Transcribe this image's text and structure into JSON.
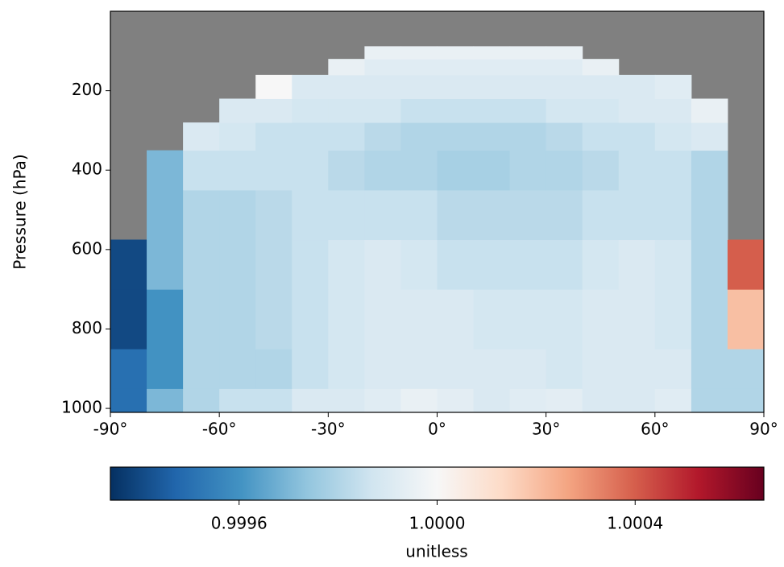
{
  "chart_data": {
    "type": "heatmap",
    "ylabel": "Pressure (hPa)",
    "colorbar_label": "unitless",
    "x_edges": [
      -90,
      -80,
      -70,
      -60,
      -50,
      -40,
      -30,
      -20,
      -10,
      0,
      10,
      20,
      30,
      40,
      50,
      60,
      70,
      80,
      90
    ],
    "y_edges": [
      1010,
      950,
      850,
      700,
      575,
      450,
      350,
      280,
      220,
      160,
      120,
      88
    ],
    "values": [
      [
        0.9995,
        0.9997,
        0.9998,
        0.99985,
        0.99985,
        0.9999,
        0.9999,
        0.99992,
        0.99995,
        0.99993,
        0.9999,
        0.99992,
        0.99993,
        0.9999,
        0.9999,
        0.99992,
        0.9998,
        0.9998
      ],
      [
        0.9995,
        0.9996,
        0.9998,
        0.9998,
        0.9998,
        0.99985,
        0.99988,
        0.9999,
        0.9999,
        0.9999,
        0.9999,
        0.9999,
        0.99988,
        0.9999,
        0.9999,
        0.9999,
        0.9998,
        0.9998
      ],
      [
        0.9994,
        0.9996,
        0.9998,
        0.9998,
        0.99982,
        0.99985,
        0.99988,
        0.9999,
        0.9999,
        0.9999,
        0.99988,
        0.99988,
        0.99988,
        0.9999,
        0.9999,
        0.99988,
        0.9998,
        1.0002
      ],
      [
        0.9994,
        0.9997,
        0.9998,
        0.9998,
        0.99982,
        0.99985,
        0.99988,
        0.9999,
        0.99988,
        0.99985,
        0.99985,
        0.99985,
        0.99985,
        0.99988,
        0.9999,
        0.99988,
        0.9998,
        1.0004
      ],
      [
        null,
        0.9997,
        0.9998,
        0.9998,
        0.99982,
        0.99985,
        0.99985,
        0.99985,
        0.99985,
        0.99982,
        0.99982,
        0.99982,
        0.99982,
        0.99985,
        0.99985,
        0.99985,
        0.9998,
        null
      ],
      [
        null,
        0.9997,
        0.99985,
        0.99985,
        0.99985,
        0.99985,
        0.99982,
        0.9998,
        0.9998,
        0.99978,
        0.99978,
        0.9998,
        0.9998,
        0.99982,
        0.99985,
        0.99985,
        0.9998,
        null
      ],
      [
        null,
        null,
        0.9999,
        0.99988,
        0.99985,
        0.99985,
        0.99985,
        0.99982,
        0.9998,
        0.9998,
        0.9998,
        0.9998,
        0.99982,
        0.99985,
        0.99985,
        0.99988,
        0.9999,
        null
      ],
      [
        null,
        null,
        null,
        0.9999,
        0.9999,
        0.99988,
        0.99988,
        0.99988,
        0.99985,
        0.99985,
        0.99985,
        0.99985,
        0.99988,
        0.99988,
        0.9999,
        0.9999,
        0.99995,
        null
      ],
      [
        null,
        null,
        null,
        null,
        1.0,
        0.9999,
        0.9999,
        0.9999,
        0.9999,
        0.9999,
        0.9999,
        0.9999,
        0.9999,
        0.9999,
        0.9999,
        0.99992,
        null,
        null
      ],
      [
        null,
        null,
        null,
        null,
        null,
        null,
        0.99995,
        0.99992,
        0.99992,
        0.99992,
        0.99992,
        0.99992,
        0.99992,
        0.99995,
        null,
        null,
        null,
        null
      ],
      [
        null,
        null,
        null,
        null,
        null,
        null,
        null,
        0.99995,
        0.99995,
        0.99995,
        0.99995,
        0.99995,
        0.99995,
        null,
        null,
        null,
        null,
        null
      ]
    ],
    "xlim": [
      -90,
      90
    ],
    "ylim": [
      1010,
      0
    ],
    "xticks": [
      {
        "value": -90,
        "label": "-90°"
      },
      {
        "value": -60,
        "label": "-60°"
      },
      {
        "value": -30,
        "label": "-30°"
      },
      {
        "value": 0,
        "label": "0°"
      },
      {
        "value": 30,
        "label": "30°"
      },
      {
        "value": 60,
        "label": "60°"
      },
      {
        "value": 90,
        "label": "90°"
      }
    ],
    "yticks": [
      200,
      400,
      600,
      800,
      1000
    ],
    "clim": [
      0.99934,
      1.00066
    ],
    "cticks": [
      0.9996,
      {
        "value": 1.0,
        "label": "1.0000"
      },
      1.0004
    ],
    "colormap": [
      "#053061",
      "#2166ac",
      "#4393c3",
      "#92c5de",
      "#d1e5f0",
      "#f7f7f7",
      "#fddbc7",
      "#f4a582",
      "#d6604d",
      "#b2182b",
      "#67001f"
    ],
    "missing_color": "#808080"
  }
}
